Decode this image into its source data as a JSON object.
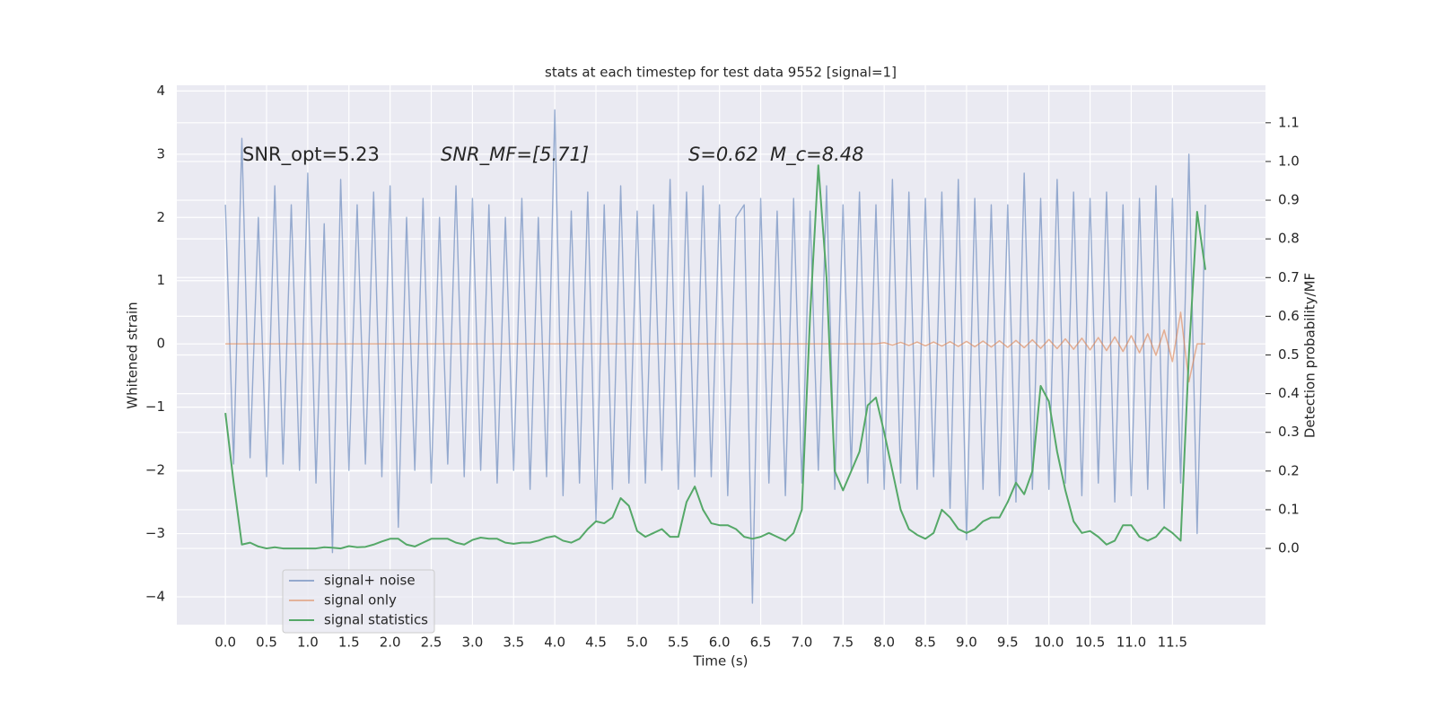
{
  "chart_data": {
    "type": "line",
    "title": "stats at each timestep for test data 9552 [signal=1]",
    "xlabel": "Time (s)",
    "ylabel": "Whitened strain",
    "y2label": "Detection probability/MF",
    "annotations": [
      "SNR_opt=5.23",
      "SNR_MF=[5.71]",
      "S=0.62",
      "M_c=8.48"
    ],
    "grid": true,
    "legend": "lower left",
    "xlim": [
      -0.59,
      12.63
    ],
    "ylim": [
      -4.44,
      4.09
    ],
    "y2lim": [
      -0.197,
      1.197
    ],
    "xticks": [
      {
        "value": 0,
        "label": "0.0"
      },
      0.5,
      {
        "value": 1,
        "label": "1.0"
      },
      1.5,
      {
        "value": 2,
        "label": "2.0"
      },
      2.5,
      {
        "value": 3,
        "label": "3.0"
      },
      3.5,
      {
        "value": 4,
        "label": "4.0"
      },
      4.5,
      {
        "value": 5,
        "label": "5.0"
      },
      5.5,
      {
        "value": 6,
        "label": "6.0"
      },
      6.5,
      {
        "value": 7,
        "label": "7.0"
      },
      7.5,
      {
        "value": 8,
        "label": "8.0"
      },
      8.5,
      {
        "value": 9,
        "label": "9.0"
      },
      9.5,
      {
        "value": 10,
        "label": "10.0"
      },
      10.5,
      {
        "value": 11,
        "label": "11.0"
      },
      11.5
    ],
    "yticks": [
      {
        "value": -4,
        "label": "−4"
      },
      {
        "value": -3,
        "label": "−3"
      },
      {
        "value": -2,
        "label": "−2"
      },
      {
        "value": -1,
        "label": "−1"
      },
      0,
      1,
      2,
      3,
      4
    ],
    "y2ticks": [
      {
        "value": 0,
        "label": "0.0"
      },
      0.1,
      0.2,
      0.3,
      0.4,
      0.5,
      0.6,
      0.7,
      0.8,
      0.9,
      {
        "value": 1,
        "label": "1.0"
      },
      1.1
    ],
    "x": [
      0,
      0.1,
      0.2,
      0.3,
      0.4,
      0.5,
      0.6,
      0.7,
      0.8,
      0.9,
      1,
      1.1,
      1.2,
      1.3,
      1.4,
      1.5,
      1.6,
      1.7,
      1.8,
      1.9,
      2,
      2.1,
      2.2,
      2.3,
      2.4,
      2.5,
      2.6,
      2.7,
      2.8,
      2.9,
      3,
      3.1,
      3.2,
      3.3,
      3.4,
      3.5,
      3.6,
      3.7,
      3.8,
      3.9,
      4,
      4.1,
      4.2,
      4.3,
      4.4,
      4.5,
      4.6,
      4.7,
      4.8,
      4.9,
      5,
      5.1,
      5.2,
      5.3,
      5.4,
      5.5,
      5.6,
      5.7,
      5.8,
      5.9,
      6,
      6.1,
      6.2,
      6.3,
      6.4,
      6.5,
      6.6,
      6.7,
      6.8,
      6.9,
      7,
      7.1,
      7.2,
      7.3,
      7.4,
      7.5,
      7.6,
      7.7,
      7.8,
      7.9,
      8,
      8.1,
      8.2,
      8.3,
      8.4,
      8.5,
      8.6,
      8.7,
      8.8,
      8.9,
      9,
      9.1,
      9.2,
      9.3,
      9.4,
      9.5,
      9.6,
      9.7,
      9.8,
      9.9,
      10,
      10.1,
      10.2,
      10.3,
      10.4,
      10.5,
      10.6,
      10.7,
      10.8,
      10.9,
      11,
      11.1,
      11.2,
      11.3,
      11.4,
      11.5,
      11.6,
      11.7,
      11.8,
      11.9
    ],
    "series": [
      {
        "name": "signal+ noise",
        "color": "#4c72b0",
        "values": [
          2.2,
          -1.9,
          3.25,
          -1.8,
          2.0,
          -2.1,
          2.5,
          -1.9,
          2.2,
          -2.0,
          2.7,
          -2.2,
          1.9,
          -3.3,
          2.6,
          -2.0,
          2.2,
          -1.9,
          2.4,
          -2.1,
          2.5,
          -2.9,
          2.0,
          -2.0,
          2.3,
          -2.2,
          2.0,
          -1.9,
          2.5,
          -2.1,
          2.3,
          -2.0,
          2.2,
          -2.2,
          2.0,
          -2.0,
          2.3,
          -2.3,
          2.0,
          -2.1,
          3.7,
          -2.4,
          2.1,
          -2.2,
          2.4,
          -2.8,
          2.2,
          -2.3,
          2.5,
          -2.2,
          2.1,
          -2.2,
          2.2,
          -2.0,
          2.6,
          -2.3,
          2.4,
          -2.1,
          2.5,
          -2.1,
          2.2,
          -2.4,
          2.0,
          2.2,
          -4.1,
          2.3,
          -2.2,
          2.1,
          -2.4,
          2.3,
          -2.2,
          2.1,
          -2.0,
          2.5,
          -2.3,
          2.2,
          -2.0,
          2.4,
          -2.2,
          2.2,
          -2.3,
          2.6,
          -2.2,
          2.4,
          -2.3,
          2.3,
          -2.1,
          2.4,
          -2.6,
          2.6,
          -3.1,
          2.3,
          -2.3,
          2.2,
          -2.4,
          2.2,
          -2.5,
          2.7,
          -2.3,
          2.3,
          -2.3,
          2.6,
          -2.2,
          2.4,
          -2.4,
          2.3,
          -2.2,
          2.4,
          -2.5,
          2.2,
          -2.4,
          2.3,
          -2.3,
          2.5,
          -2.6,
          2.3,
          -2.2,
          3.0,
          -3.0,
          2.2
        ]
      },
      {
        "name": "signal only",
        "color": "#dd8452",
        "values": [
          0,
          0,
          0,
          0,
          0,
          0,
          0,
          0,
          0,
          0,
          0,
          0,
          0,
          0,
          0,
          0,
          0,
          0,
          0,
          0,
          0,
          0,
          0,
          0,
          0,
          0,
          0,
          0,
          0,
          0,
          0,
          0,
          0,
          0,
          0,
          0,
          0,
          0,
          0,
          0,
          0,
          0,
          0,
          0,
          0,
          0,
          0,
          0,
          0,
          0,
          0,
          0,
          0,
          0,
          0,
          0,
          0,
          0,
          0,
          0,
          0,
          0,
          0,
          0,
          0,
          0,
          0,
          0,
          0,
          0,
          0,
          0,
          0,
          0,
          0,
          0,
          0,
          0,
          0,
          0,
          0.02,
          -0.02,
          0.025,
          -0.025,
          0.03,
          -0.03,
          0.03,
          -0.035,
          0.035,
          -0.04,
          0.04,
          -0.045,
          0.045,
          -0.05,
          0.05,
          -0.055,
          0.055,
          -0.06,
          0.065,
          -0.07,
          0.07,
          -0.075,
          0.08,
          -0.085,
          0.09,
          -0.095,
          0.1,
          -0.105,
          0.11,
          -0.12,
          0.13,
          -0.14,
          0.16,
          -0.18,
          0.22,
          -0.28,
          0.5,
          -0.6,
          0,
          0
        ]
      },
      {
        "name": "signal statistics",
        "color": "#55a868",
        "axis": "y2",
        "values": [
          0.35,
          0.17,
          0.01,
          0.015,
          0.005,
          0.0,
          0.003,
          0.0,
          0.0,
          0.0,
          0.0,
          0.0,
          0.003,
          0.002,
          0.0,
          0.006,
          0.003,
          0.004,
          0.01,
          0.018,
          0.025,
          0.025,
          0.01,
          0.005,
          0.015,
          0.025,
          0.025,
          0.025,
          0.015,
          0.01,
          0.022,
          0.028,
          0.025,
          0.025,
          0.015,
          0.012,
          0.015,
          0.015,
          0.02,
          0.028,
          0.032,
          0.02,
          0.015,
          0.025,
          0.05,
          0.07,
          0.065,
          0.08,
          0.13,
          0.11,
          0.045,
          0.03,
          0.04,
          0.05,
          0.03,
          0.03,
          0.12,
          0.16,
          0.1,
          0.065,
          0.06,
          0.06,
          0.05,
          0.03,
          0.025,
          0.03,
          0.04,
          0.03,
          0.02,
          0.04,
          0.1,
          0.6,
          0.99,
          0.7,
          0.2,
          0.15,
          0.2,
          0.25,
          0.37,
          0.39,
          0.3,
          0.2,
          0.1,
          0.05,
          0.035,
          0.025,
          0.04,
          0.1,
          0.08,
          0.05,
          0.04,
          0.05,
          0.07,
          0.08,
          0.08,
          0.12,
          0.17,
          0.14,
          0.2,
          0.42,
          0.38,
          0.25,
          0.15,
          0.07,
          0.04,
          0.045,
          0.03,
          0.01,
          0.02,
          0.06,
          0.06,
          0.03,
          0.02,
          0.03,
          0.055,
          0.04,
          0.02,
          0.5,
          0.87,
          0.72
        ]
      }
    ]
  }
}
